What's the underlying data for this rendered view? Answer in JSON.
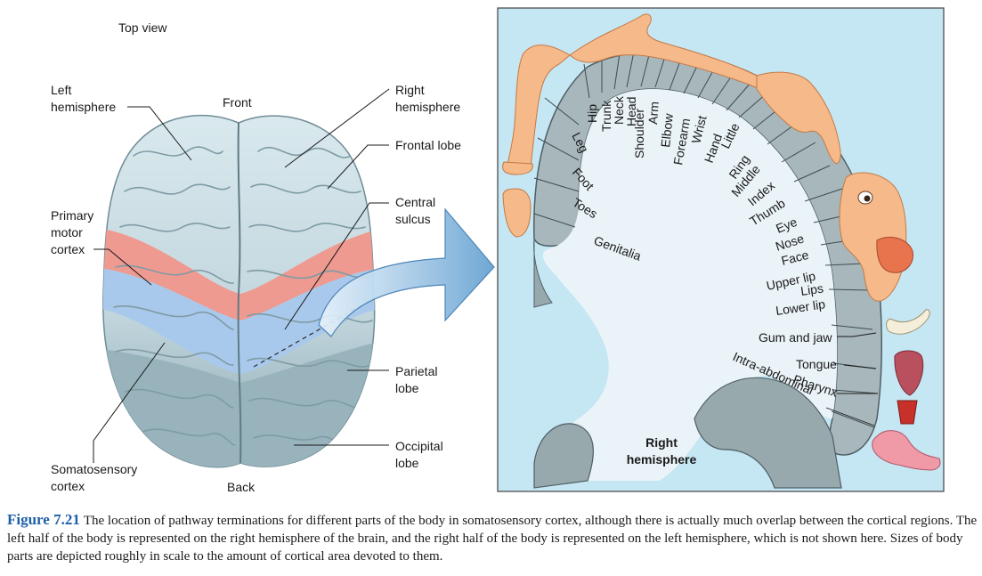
{
  "left_panel": {
    "view_title": "Top view",
    "left_hemisphere": [
      "Left",
      "hemisphere"
    ],
    "front": "Front",
    "right_hemisphere": [
      "Right",
      "hemisphere"
    ],
    "frontal_lobe": "Frontal lobe",
    "central_sulcus": [
      "Central",
      "sulcus"
    ],
    "primary_motor_cortex": [
      "Primary",
      "motor",
      "cortex"
    ],
    "parietal_lobe": [
      "Parietal",
      "lobe"
    ],
    "occipital_lobe": [
      "Occipital",
      "lobe"
    ],
    "somatosensory_cortex": [
      "Somatosensory",
      "cortex"
    ],
    "back": "Back"
  },
  "right_panel": {
    "hemisphere_label": [
      "Right",
      "hemisphere"
    ],
    "body_parts": [
      "Hip",
      "Trunk",
      "Neck",
      "Head",
      "Shoulder",
      "Arm",
      "Elbow",
      "Forearm",
      "Wrist",
      "Hand",
      "Little",
      "Ring",
      "Middle",
      "Index",
      "Thumb",
      "Eye",
      "Nose",
      "Face",
      "Upper lip",
      "Lips",
      "Lower lip",
      "Gum and jaw",
      "Tongue",
      "Pharynx",
      "Intra-abdominal",
      "Leg",
      "Foot",
      "Toes",
      "Genitalia"
    ]
  },
  "caption": {
    "figure_number": "Figure 7.21",
    "text": "The location of pathway terminations for different parts of the body in somatosensory cortex, although there is actually much overlap between the cortical regions. The left half of the body is represented on the right hemisphere of the brain, and the right half of the body is represented on the left hemisphere, which is not shown here. Sizes of body parts are depicted roughly in scale to the amount of cortical area devoted to them."
  },
  "colors": {
    "brain_frontal": "#cfe1e8",
    "brain_occipital": "#98b3bc",
    "motor_cortex": "#ef9a90",
    "somatosensory": "#a9c9ec",
    "panel_background": "#c5e6f3",
    "cortex_strip": "#a8b7bb",
    "homunculus_skin": "#f6b98a",
    "caption_figure_number": "#1f5fa8"
  }
}
